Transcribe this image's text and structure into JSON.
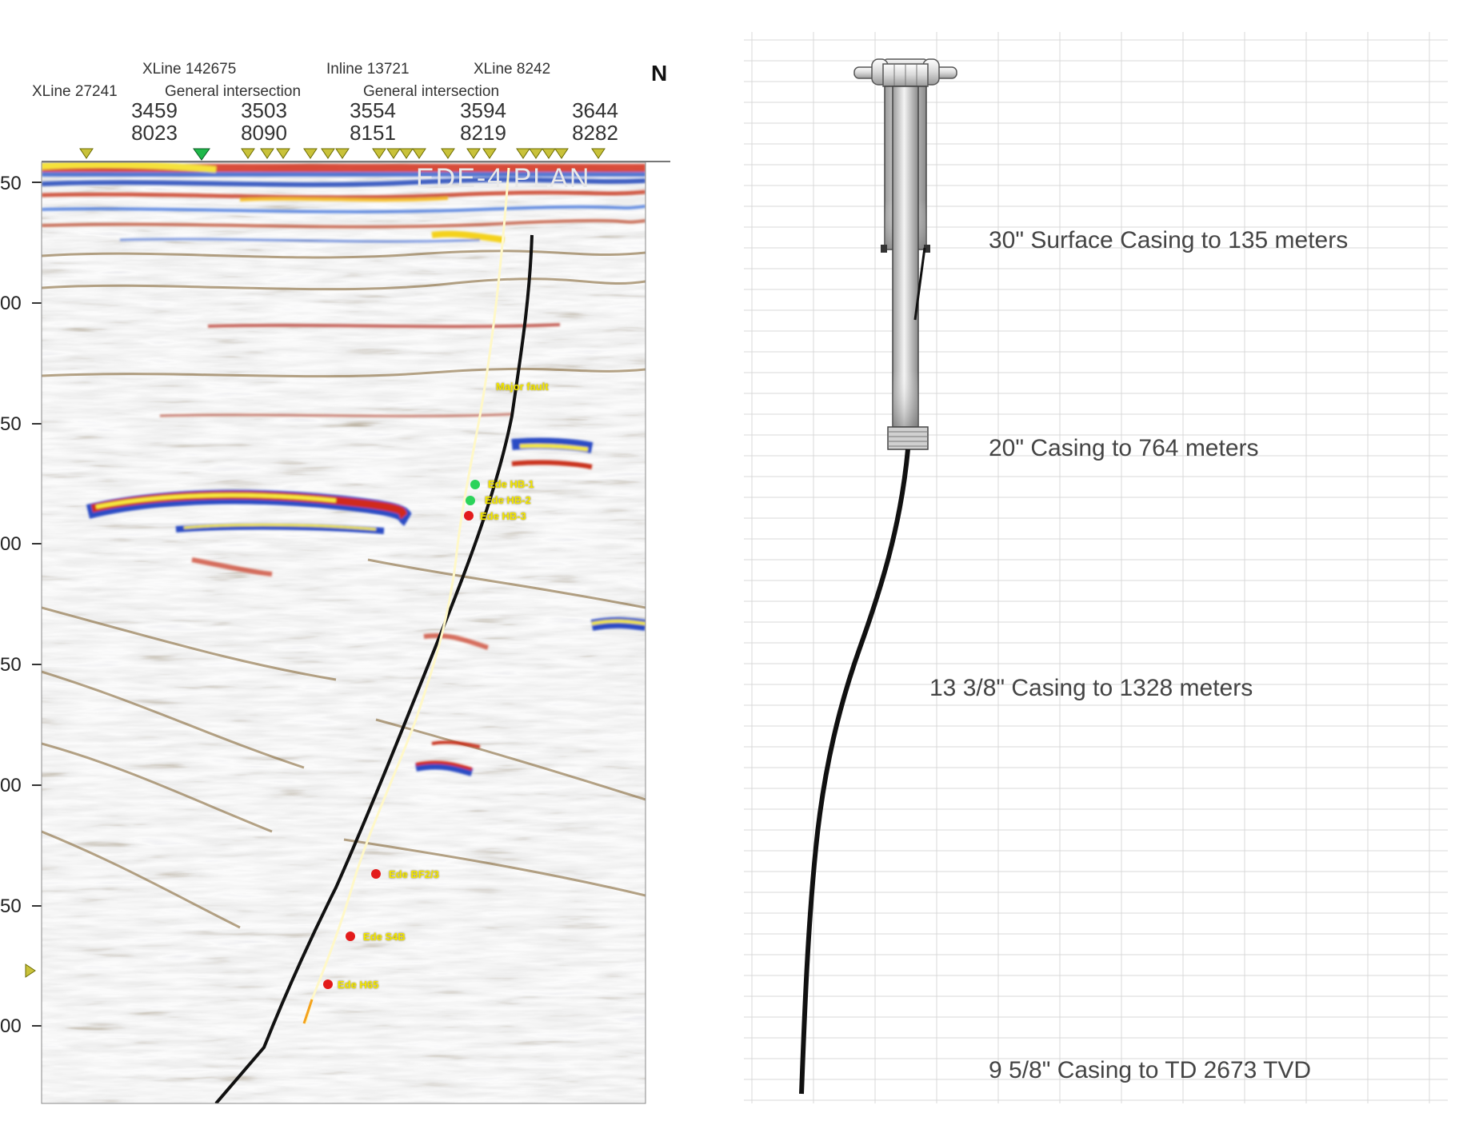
{
  "seismic": {
    "north_label": "N",
    "well_name": "EDE-4 PLAN",
    "top_labels_row1": [
      "XLine 142675",
      "Inline 13721",
      "XLine 8242"
    ],
    "top_labels_row2": [
      "XLine 27241",
      "General intersection",
      "General intersection"
    ],
    "trace_numbers": [
      {
        "top": "3459",
        "bottom": "8023"
      },
      {
        "top": "3503",
        "bottom": "8090"
      },
      {
        "top": "3554",
        "bottom": "8151"
      },
      {
        "top": "3594",
        "bottom": "8219"
      },
      {
        "top": "3644",
        "bottom": "8282"
      }
    ],
    "depth_labels": [
      "50",
      "00",
      "50",
      "00",
      "50",
      "00",
      "50",
      "00"
    ],
    "picks": [
      {
        "label": "Major fault",
        "color": "#f2e600"
      },
      {
        "label": "Ede HB-1",
        "color": "#2bd35a"
      },
      {
        "label": "Ede HB-2",
        "color": "#2bd35a"
      },
      {
        "label": "Ede HB-3",
        "color": "#e31b1b"
      },
      {
        "label": "Ede BF2/3",
        "color": "#e31b1b"
      },
      {
        "label": "Ede S4B",
        "color": "#e31b1b"
      },
      {
        "label": "Ede H65",
        "color": "#e31b1b"
      }
    ]
  },
  "casing": {
    "annotations": [
      "30\" Surface Casing  to 135 meters",
      "20\" Casing to 764 meters",
      "13 3/8\" Casing to 1328  meters",
      "9 5/8\" Casing to TD 2673 TVD"
    ]
  }
}
